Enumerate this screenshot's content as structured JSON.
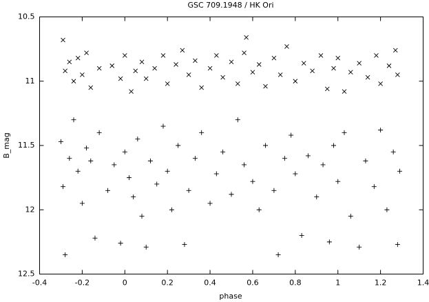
{
  "chart_data": {
    "type": "scatter",
    "title": "GSC 709.1948 / HK Ori",
    "x_label": "phase",
    "y_label": "B_mag",
    "xlim": [
      -0.4,
      1.4
    ],
    "xticks": [
      -0.4,
      -0.2,
      0,
      0.2,
      0.4,
      0.6,
      0.8,
      1,
      1.2,
      1.4
    ],
    "ylim": [
      12.5,
      10.5
    ],
    "yticks": [
      10.5,
      11,
      11.5,
      12,
      12.5
    ],
    "series": [
      {
        "marker": "x",
        "color": "#000000",
        "x": [
          -0.29,
          -0.28,
          -0.26,
          -0.24,
          -0.22,
          -0.2,
          -0.18,
          -0.16,
          -0.12,
          -0.06,
          -0.02,
          0.0,
          0.03,
          0.05,
          0.08,
          0.1,
          0.14,
          0.18,
          0.2,
          0.24,
          0.27,
          0.3,
          0.33,
          0.36,
          0.4,
          0.43,
          0.46,
          0.5,
          0.53,
          0.56,
          0.57,
          0.6,
          0.63,
          0.66,
          0.7,
          0.73,
          0.76,
          0.8,
          0.84,
          0.88,
          0.92,
          0.95,
          0.98,
          1.0,
          1.03,
          1.06,
          1.1,
          1.14,
          1.18,
          1.2,
          1.24,
          1.27,
          1.28
        ],
        "values": [
          10.68,
          10.92,
          10.85,
          11.0,
          10.82,
          10.95,
          10.78,
          11.05,
          10.9,
          10.88,
          10.98,
          10.8,
          11.08,
          10.92,
          10.85,
          10.98,
          10.9,
          10.8,
          11.02,
          10.87,
          10.76,
          10.95,
          10.84,
          11.05,
          10.9,
          10.8,
          10.97,
          10.85,
          11.02,
          10.78,
          10.66,
          10.93,
          10.87,
          11.04,
          10.82,
          10.95,
          10.73,
          11.0,
          10.86,
          10.92,
          10.8,
          11.06,
          10.9,
          10.82,
          11.08,
          10.93,
          10.86,
          10.97,
          10.8,
          11.02,
          10.88,
          10.76,
          10.95
        ]
      },
      {
        "marker": "plus",
        "color": "#000000",
        "x": [
          -0.3,
          -0.29,
          -0.28,
          -0.26,
          -0.24,
          -0.22,
          -0.2,
          -0.18,
          -0.16,
          -0.14,
          -0.12,
          -0.08,
          -0.05,
          -0.02,
          0.0,
          0.02,
          0.04,
          0.06,
          0.08,
          0.1,
          0.12,
          0.15,
          0.18,
          0.2,
          0.22,
          0.25,
          0.28,
          0.3,
          0.33,
          0.36,
          0.4,
          0.43,
          0.46,
          0.5,
          0.53,
          0.56,
          0.6,
          0.63,
          0.66,
          0.7,
          0.72,
          0.75,
          0.78,
          0.8,
          0.83,
          0.86,
          0.9,
          0.93,
          0.96,
          0.98,
          1.0,
          1.03,
          1.06,
          1.1,
          1.13,
          1.17,
          1.2,
          1.23,
          1.26,
          1.28,
          1.29
        ],
        "values": [
          11.47,
          11.82,
          12.35,
          11.6,
          11.3,
          11.7,
          11.95,
          11.52,
          11.62,
          12.22,
          11.4,
          11.85,
          11.65,
          12.26,
          11.55,
          11.75,
          11.9,
          11.45,
          12.05,
          12.29,
          11.62,
          11.8,
          11.35,
          11.7,
          12.0,
          11.5,
          12.27,
          11.85,
          11.6,
          11.4,
          11.95,
          11.72,
          11.55,
          11.88,
          11.3,
          11.65,
          11.78,
          12.0,
          11.5,
          11.85,
          12.35,
          11.6,
          11.42,
          11.72,
          12.2,
          11.58,
          11.9,
          11.65,
          12.25,
          11.5,
          11.78,
          11.4,
          12.05,
          12.29,
          11.62,
          11.82,
          11.38,
          12.0,
          11.55,
          12.27,
          11.7
        ]
      }
    ]
  }
}
